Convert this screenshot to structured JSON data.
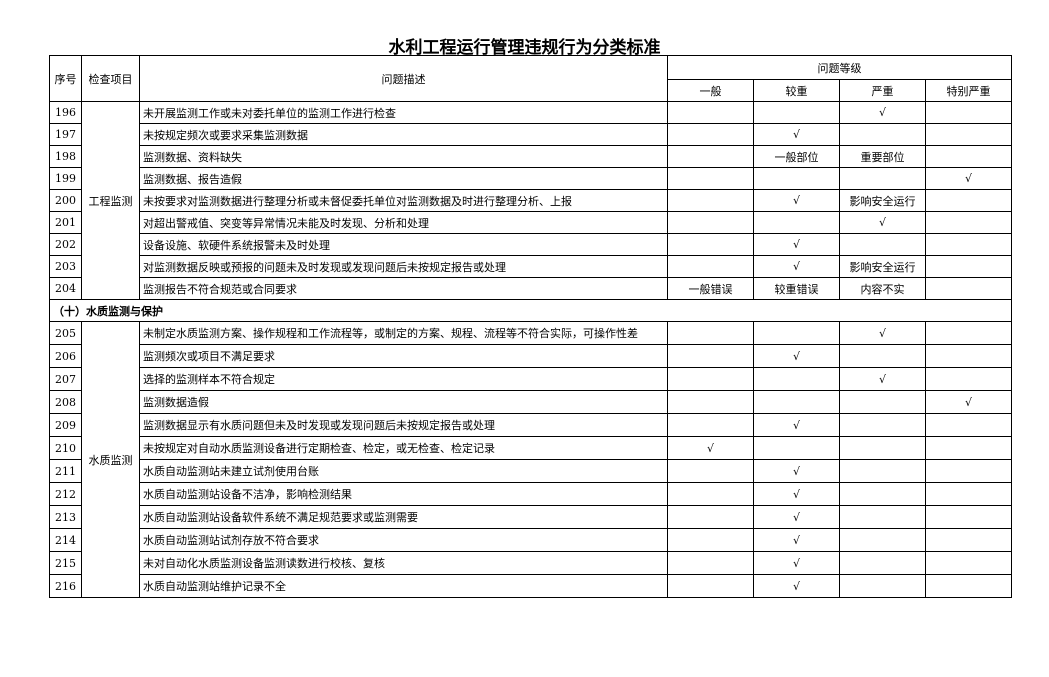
{
  "title": "水利工程运行管理违规行为分类标准",
  "header": {
    "no": "序号",
    "item": "检查项目",
    "desc": "问题描述",
    "level": "问题等级",
    "levels": [
      "一般",
      "较重",
      "严重",
      "特别严重"
    ]
  },
  "blocks": [
    {
      "item": "工程监测",
      "rows": [
        [
          196,
          "未开展监测工作或未对委托单位的监测工作进行检查",
          null,
          null,
          "√",
          null
        ],
        [
          197,
          "未按规定频次或要求采集监测数据",
          null,
          "√",
          null,
          null
        ],
        [
          198,
          "监测数据、资料缺失",
          null,
          "一般部位",
          "重要部位",
          null
        ],
        [
          199,
          "监测数据、报告造假",
          null,
          null,
          null,
          "√"
        ],
        [
          200,
          "未按要求对监测数据进行整理分析或未督促委托单位对监测数据及时进行整理分析、上报",
          null,
          "√",
          "影响安全运行",
          null
        ],
        [
          201,
          "对超出警戒值、突变等异常情况未能及时发现、分析和处理",
          null,
          null,
          "√",
          null
        ],
        [
          202,
          "设备设施、软硬件系统报警未及时处理",
          null,
          "√",
          null,
          null
        ],
        [
          203,
          "对监测数据反映或预报的问题未及时发现或发现问题后未按规定报告或处理",
          null,
          "√",
          "影响安全运行",
          null
        ],
        [
          204,
          "监测报告不符合规范或合同要求",
          "一般错误",
          "较重错误",
          "内容不实",
          null
        ]
      ]
    },
    {
      "section": "（十）水质监测与保护"
    },
    {
      "item": "水质监测",
      "rows": [
        [
          205,
          "未制定水质监测方案、操作规程和工作流程等，或制定的方案、规程、流程等不符合实际，可操作性差",
          null,
          null,
          "√",
          null
        ],
        [
          206,
          "监测频次或项目不满足要求",
          null,
          "√",
          null,
          null
        ],
        [
          207,
          "选择的监测样本不符合规定",
          null,
          null,
          "√",
          null
        ],
        [
          208,
          "监测数据造假",
          null,
          null,
          null,
          "√"
        ],
        [
          209,
          "监测数据显示有水质问题但未及时发现或发现问题后未按规定报告或处理",
          null,
          "√",
          null,
          null
        ],
        [
          210,
          "未按规定对自动水质监测设备进行定期检查、检定，或无检查、检定记录",
          "√",
          null,
          null,
          null
        ],
        [
          211,
          "水质自动监测站未建立试剂使用台账",
          null,
          "√",
          null,
          null
        ],
        [
          212,
          "水质自动监测站设备不洁净，影响检测结果",
          null,
          "√",
          null,
          null
        ],
        [
          213,
          "水质自动监测站设备软件系统不满足规范要求或监测需要",
          null,
          "√",
          null,
          null
        ],
        [
          214,
          "水质自动监测站试剂存放不符合要求",
          null,
          "√",
          null,
          null
        ],
        [
          215,
          "未对自动化水质监测设备监测读数进行校核、复核",
          null,
          "√",
          null,
          null
        ],
        [
          216,
          "水质自动监测站维护记录不全",
          null,
          "√",
          null,
          null
        ]
      ]
    }
  ]
}
